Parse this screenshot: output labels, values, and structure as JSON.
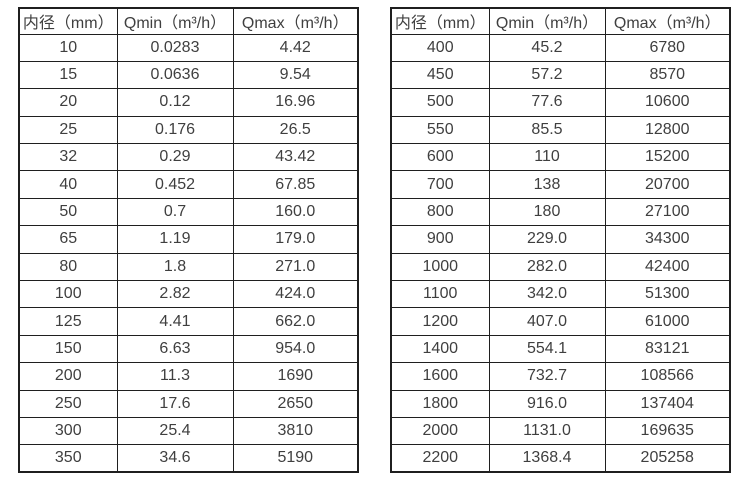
{
  "colors": {
    "text": "#3f3f3f",
    "border": "#1f1f1f",
    "background": "#ffffff"
  },
  "tables": [
    {
      "name": "flow-rate-table-small-diameters",
      "headers": [
        "内径（mm）",
        "Qmin（m³/h）",
        "Qmax（m³/h）"
      ],
      "rows": [
        [
          "10",
          "0.0283",
          "4.42"
        ],
        [
          "15",
          "0.0636",
          "9.54"
        ],
        [
          "20",
          "0.12",
          "16.96"
        ],
        [
          "25",
          "0.176",
          "26.5"
        ],
        [
          "32",
          "0.29",
          "43.42"
        ],
        [
          "40",
          "0.452",
          "67.85"
        ],
        [
          "50",
          "0.7",
          "160.0"
        ],
        [
          "65",
          "1.19",
          "179.0"
        ],
        [
          "80",
          "1.8",
          "271.0"
        ],
        [
          "100",
          "2.82",
          "424.0"
        ],
        [
          "125",
          "4.41",
          "662.0"
        ],
        [
          "150",
          "6.63",
          "954.0"
        ],
        [
          "200",
          "11.3",
          "1690"
        ],
        [
          "250",
          "17.6",
          "2650"
        ],
        [
          "300",
          "25.4",
          "3810"
        ],
        [
          "350",
          "34.6",
          "5190"
        ]
      ]
    },
    {
      "name": "flow-rate-table-large-diameters",
      "headers": [
        "内径（mm）",
        "Qmin（m³/h）",
        "Qmax（m³/h）"
      ],
      "rows": [
        [
          "400",
          "45.2",
          "6780"
        ],
        [
          "450",
          "57.2",
          "8570"
        ],
        [
          "500",
          "77.6",
          "10600"
        ],
        [
          "550",
          "85.5",
          "12800"
        ],
        [
          "600",
          "110",
          "15200"
        ],
        [
          "700",
          "138",
          "20700"
        ],
        [
          "800",
          "180",
          "27100"
        ],
        [
          "900",
          "229.0",
          "34300"
        ],
        [
          "1000",
          "282.0",
          "42400"
        ],
        [
          "1100",
          "342.0",
          "51300"
        ],
        [
          "1200",
          "407.0",
          "61000"
        ],
        [
          "1400",
          "554.1",
          "83121"
        ],
        [
          "1600",
          "732.7",
          "108566"
        ],
        [
          "1800",
          "916.0",
          "137404"
        ],
        [
          "2000",
          "1131.0",
          "169635"
        ],
        [
          "2200",
          "1368.4",
          "205258"
        ]
      ]
    }
  ]
}
